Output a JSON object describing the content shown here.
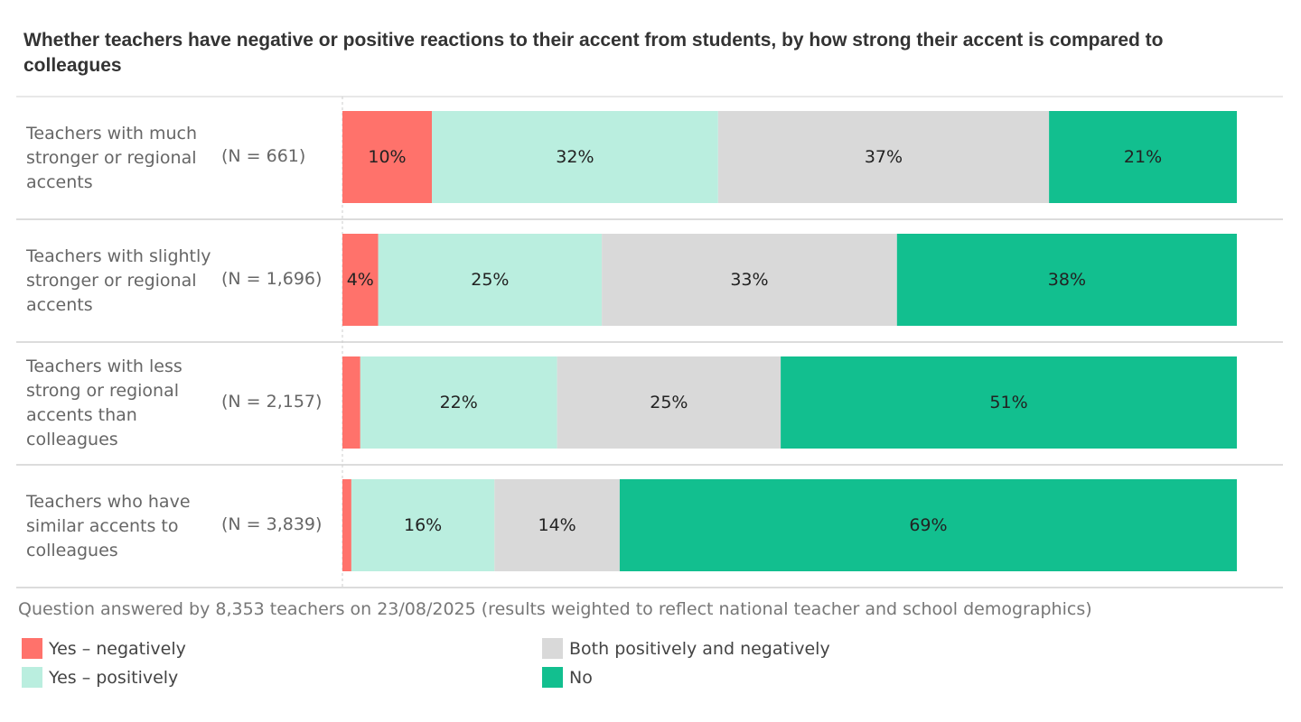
{
  "chart_data": {
    "type": "bar",
    "orientation": "horizontal",
    "stacked": true,
    "title": "Whether teachers have negative or positive reactions to their accent from students, by how strong their accent is compared to colleagues",
    "categories": [
      {
        "label": "Teachers with much stronger or regional accents",
        "n_label": "(N = 661)"
      },
      {
        "label": "Teachers with slightly stronger or regional accents",
        "n_label": "(N = 1,696)"
      },
      {
        "label": "Teachers with less strong or regional accents than colleagues",
        "n_label": "(N = 2,157)"
      },
      {
        "label": "Teachers who have similar accents to colleagues",
        "n_label": "(N = 3,839)"
      }
    ],
    "series": [
      {
        "name": "Yes – negatively",
        "color": "#ff726b",
        "values": [
          10,
          4,
          2,
          1
        ],
        "labels": [
          "10%",
          "4%",
          "",
          ""
        ]
      },
      {
        "name": "Yes – positively",
        "color": "#baeedf",
        "values": [
          32,
          25,
          22,
          16
        ],
        "labels": [
          "32%",
          "25%",
          "22%",
          "16%"
        ]
      },
      {
        "name": "Both positively and negatively",
        "color": "#d9d9d9",
        "values": [
          37,
          33,
          25,
          14
        ],
        "labels": [
          "37%",
          "33%",
          "25%",
          "14%"
        ]
      },
      {
        "name": "No",
        "color": "#12bf8f",
        "values": [
          21,
          38,
          51,
          69
        ],
        "labels": [
          "21%",
          "38%",
          "51%",
          "69%"
        ]
      }
    ],
    "xlim": [
      0,
      100
    ],
    "xlabel": "",
    "ylabel": "",
    "grid": false,
    "legend_position": "bottom",
    "footnote": "Question answered by 8,353 teachers on 23/08/2025 (results weighted to reflect national teacher and school demographics)"
  },
  "colors": {
    "separator": "#d0d0d0",
    "axis_dash": "#cccccc"
  }
}
